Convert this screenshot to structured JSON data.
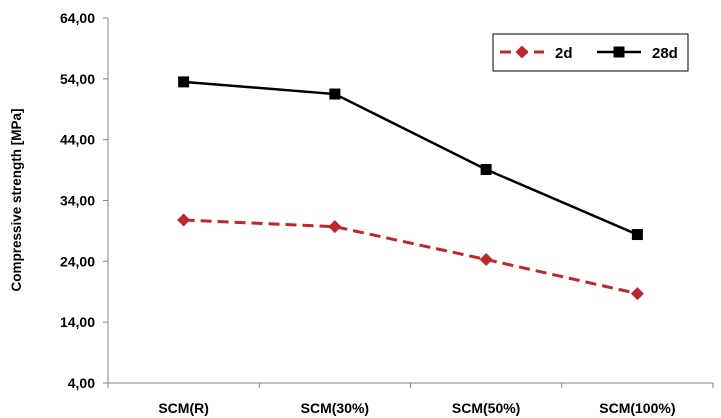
{
  "chart_data": {
    "type": "line",
    "title": "",
    "xlabel": "",
    "ylabel": "Compressive strength [MPa]",
    "categories": [
      "SCM(R)",
      "SCM(30%)",
      "SCM(50%)",
      "SCM(100%)"
    ],
    "ylim": [
      4,
      64
    ],
    "yticks": [
      "4,00",
      "14,00",
      "24,00",
      "34,00",
      "44,00",
      "54,00",
      "64,00"
    ],
    "grid": false,
    "legend_position": "top-right",
    "series": [
      {
        "name": "2d",
        "values": [
          30.8,
          29.7,
          24.3,
          18.7
        ],
        "color": "#c0262d",
        "dashed": true,
        "marker": "diamond"
      },
      {
        "name": "28d",
        "values": [
          53.5,
          51.5,
          39.1,
          28.4
        ],
        "color": "#000000",
        "dashed": false,
        "marker": "square"
      }
    ]
  }
}
